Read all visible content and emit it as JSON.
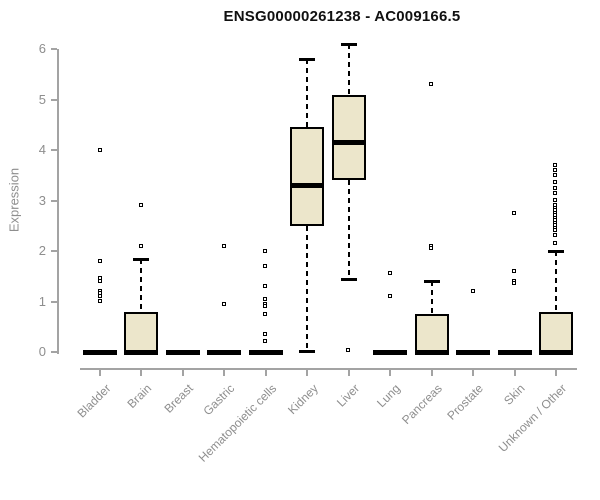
{
  "chart_data": {
    "type": "boxplot",
    "title": "ENSG00000261238 - AC009166.5",
    "ylabel": "Expression",
    "xlabel": "",
    "ylim": [
      0,
      6
    ],
    "yticks": [
      0,
      1,
      2,
      3,
      4,
      5,
      6
    ],
    "grid": false,
    "legend_position": "none",
    "categories": [
      "Bladder",
      "Brain",
      "Breast",
      "Gastric",
      "Hematopoietic cells",
      "Kidney",
      "Liver",
      "Lung",
      "Pancreas",
      "Prostate",
      "Skin",
      "Unknown / Other"
    ],
    "series": [
      {
        "name": "Bladder",
        "low": 0,
        "q1": 0,
        "median": 0,
        "q3": 0,
        "high": 0,
        "outliers": [
          4.0,
          1.8,
          1.45,
          1.4,
          1.2,
          1.15,
          1.1,
          1.0
        ]
      },
      {
        "name": "Brain",
        "low": 0,
        "q1": 0,
        "median": 0,
        "q3": 0.8,
        "high": 1.85,
        "outliers": [
          2.9,
          2.1
        ]
      },
      {
        "name": "Breast",
        "low": 0,
        "q1": 0,
        "median": 0,
        "q3": 0,
        "high": 0,
        "outliers": []
      },
      {
        "name": "Gastric",
        "low": 0,
        "q1": 0,
        "median": 0,
        "q3": 0,
        "high": 0,
        "outliers": [
          2.1,
          0.95
        ]
      },
      {
        "name": "Hematopoietic cells",
        "low": 0,
        "q1": 0,
        "median": 0,
        "q3": 0,
        "high": 0,
        "outliers": [
          2.0,
          1.7,
          1.3,
          1.05,
          0.95,
          0.9,
          0.75,
          0.35,
          0.2
        ]
      },
      {
        "name": "Kidney",
        "low": 0.02,
        "q1": 2.5,
        "median": 3.3,
        "q3": 4.45,
        "high": 5.8,
        "outliers": []
      },
      {
        "name": "Liver",
        "low": 1.45,
        "q1": 3.4,
        "median": 4.15,
        "q3": 5.1,
        "high": 6.1,
        "outliers": [
          0.02
        ]
      },
      {
        "name": "Lung",
        "low": 0,
        "q1": 0,
        "median": 0,
        "q3": 0,
        "high": 0,
        "outliers": [
          1.55,
          1.1
        ]
      },
      {
        "name": "Pancreas",
        "low": 0,
        "q1": 0,
        "median": 0,
        "q3": 0.75,
        "high": 1.4,
        "outliers": [
          5.3,
          2.1,
          2.05
        ]
      },
      {
        "name": "Prostate",
        "low": 0,
        "q1": 0,
        "median": 0,
        "q3": 0,
        "high": 0,
        "outliers": [
          1.2
        ]
      },
      {
        "name": "Skin",
        "low": 0,
        "q1": 0,
        "median": 0,
        "q3": 0,
        "high": 0,
        "outliers": [
          2.75,
          1.6,
          1.4,
          1.35
        ]
      },
      {
        "name": "Unknown / Other",
        "low": 0,
        "q1": 0,
        "median": 0,
        "q3": 0.8,
        "high": 2.0,
        "outliers": [
          3.7,
          3.6,
          3.5,
          3.35,
          3.25,
          3.15,
          3.0,
          2.9,
          2.85,
          2.8,
          2.75,
          2.7,
          2.65,
          2.6,
          2.55,
          2.5,
          2.45,
          2.4,
          2.3,
          2.15
        ]
      }
    ],
    "colors": {
      "box_fill": "#ece6cb",
      "box_border": "#000000",
      "median": "#000000",
      "axis": "#a3a3a3",
      "tick_text": "#8e8e8e",
      "title_text": "#111111",
      "background": "#ffffff"
    }
  }
}
